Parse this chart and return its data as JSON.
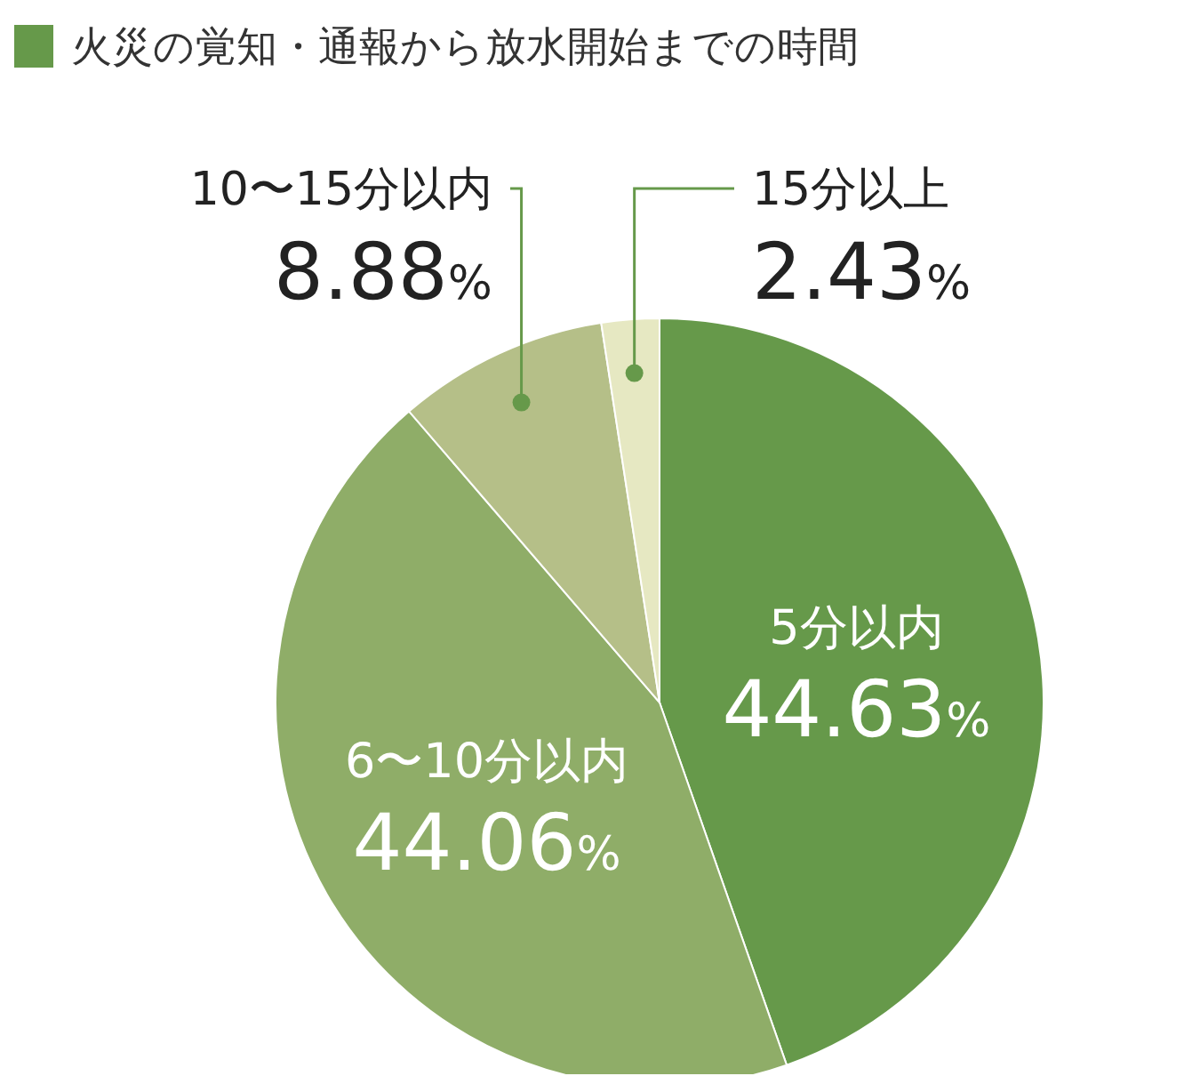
{
  "chart_data": {
    "type": "pie",
    "title": "火災の覚知・通報から放水開始までの時間",
    "categories": [
      "5分以内",
      "6〜10分以内",
      "10〜15分以内",
      "15分以上"
    ],
    "values": [
      44.63,
      44.06,
      8.88,
      2.43
    ],
    "colors": [
      "#66994a",
      "#8fad68",
      "#b5bf88",
      "#e6e8c2"
    ],
    "value_labels": [
      "44.63%",
      "44.06%",
      "8.88%",
      "2.43%"
    ]
  }
}
